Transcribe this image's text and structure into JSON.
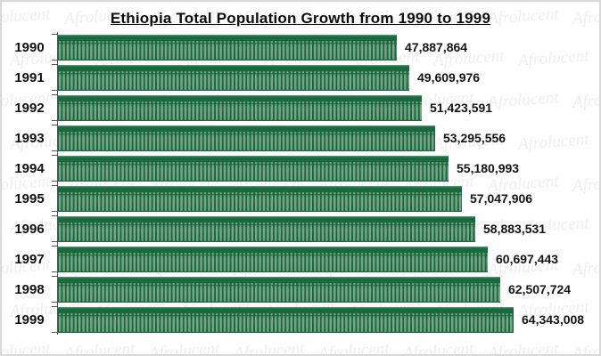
{
  "watermark": {
    "text": "Afrolucent"
  },
  "chart_data": {
    "type": "bar",
    "orientation": "horizontal",
    "title": "Ethiopia Total Population Growth from 1990 to 1999",
    "categories": [
      "1990",
      "1991",
      "1992",
      "1993",
      "1994",
      "1995",
      "1996",
      "1997",
      "1998",
      "1999"
    ],
    "values": [
      47887864,
      49609976,
      51423591,
      53295556,
      55180993,
      57047906,
      58883531,
      60697443,
      62507724,
      64343008
    ],
    "value_labels": [
      "47,887,864",
      "49,609,976",
      "51,423,591",
      "53,295,556",
      "55,180,993",
      "57,047,906",
      "58,883,531",
      "60,697,443",
      "62,507,724",
      "64,343,008"
    ],
    "xlim": [
      0,
      64343008
    ],
    "legend": "none",
    "grid": false,
    "bar_style": "pictogram-person",
    "colors": {
      "bar_fill": "#19693E",
      "bar_top_highlight": "#4E8F6B",
      "person_glyph": "#79A488",
      "axis": "#555555",
      "text": "#111111"
    }
  }
}
